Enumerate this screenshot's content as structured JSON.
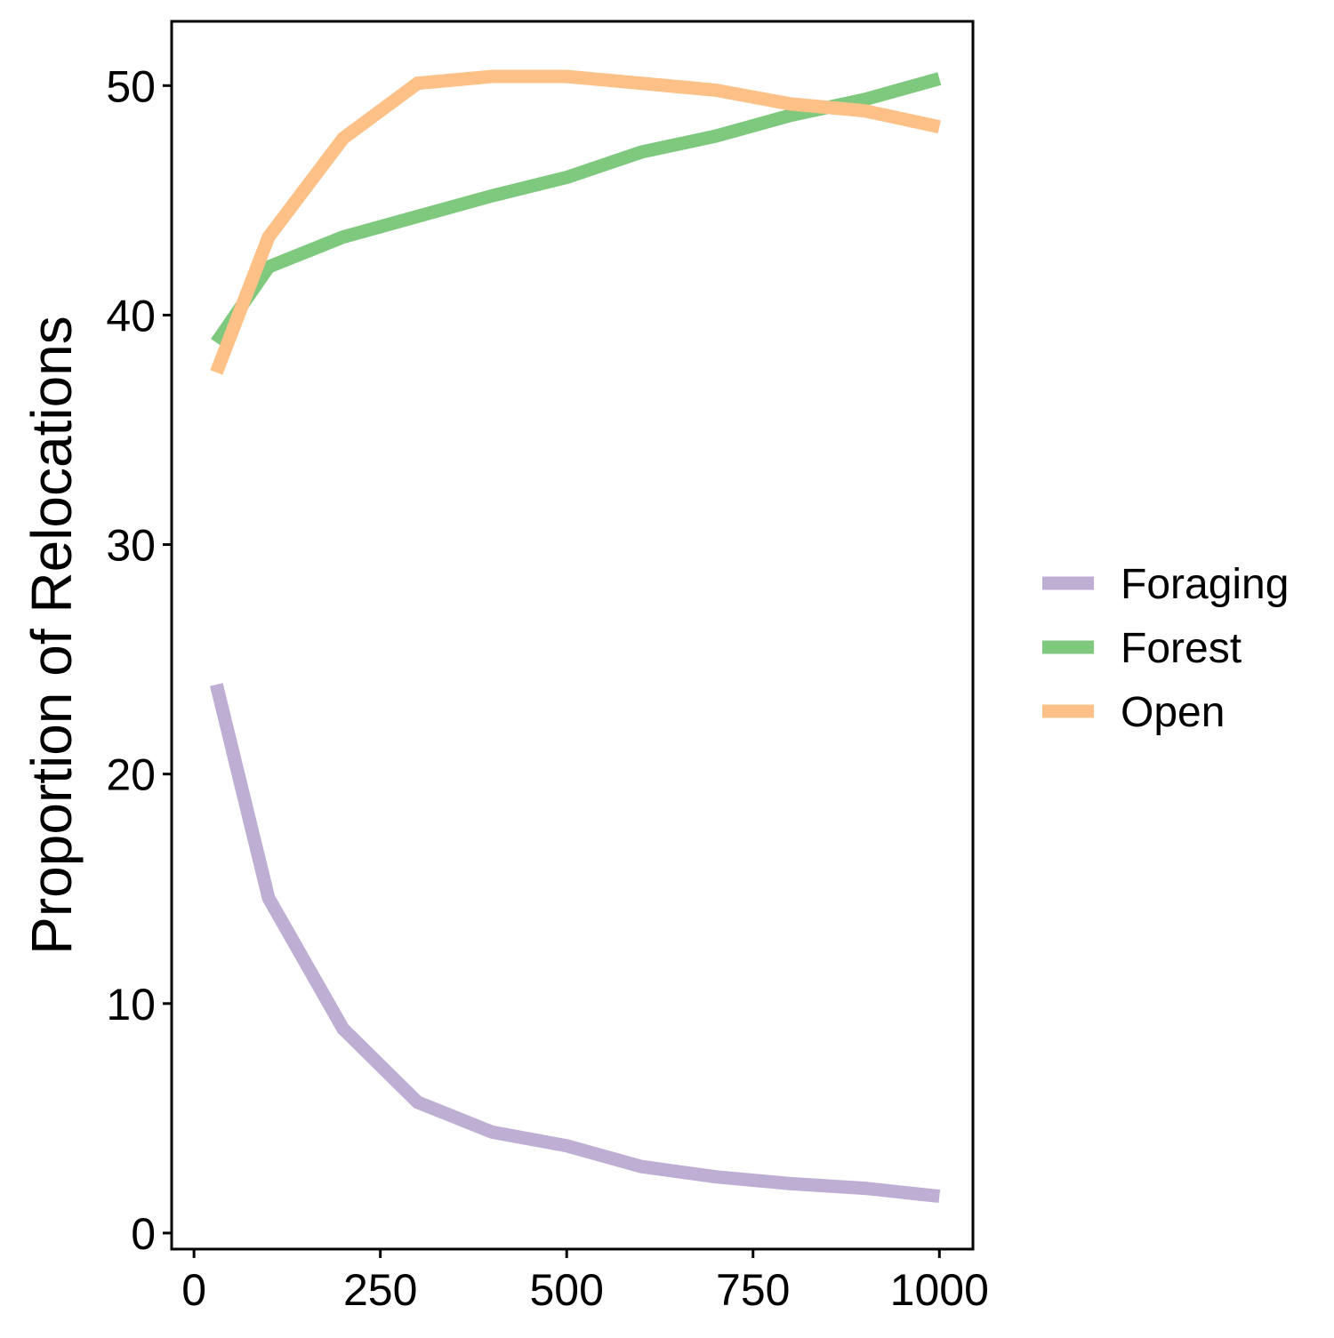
{
  "chart_data": {
    "type": "line",
    "title": "",
    "xlabel": "",
    "ylabel": "Proportion of Relocations",
    "xlim": [
      -30,
      1045
    ],
    "ylim": [
      -0.7,
      52.8
    ],
    "x_ticks": [
      0,
      250,
      500,
      750,
      1000
    ],
    "y_ticks": [
      0,
      10,
      20,
      30,
      40,
      50
    ],
    "grid": false,
    "legend_position": "right",
    "series": [
      {
        "name": "Foraging",
        "color": "#beaed4",
        "x": [
          30,
          100,
          200,
          300,
          400,
          500,
          600,
          700,
          800,
          900,
          1000
        ],
        "y": [
          23.9,
          14.6,
          8.9,
          5.7,
          4.4,
          3.8,
          2.9,
          2.45,
          2.15,
          1.95,
          1.6
        ]
      },
      {
        "name": "Forest",
        "color": "#7fc97f",
        "x": [
          30,
          100,
          200,
          300,
          400,
          500,
          600,
          700,
          800,
          900,
          1000
        ],
        "y": [
          38.8,
          42.1,
          43.4,
          44.3,
          45.2,
          46.0,
          47.1,
          47.8,
          48.7,
          49.4,
          50.3
        ]
      },
      {
        "name": "Open",
        "color": "#fdc086",
        "x": [
          30,
          100,
          200,
          300,
          400,
          500,
          600,
          700,
          800,
          900,
          1000
        ],
        "y": [
          37.5,
          43.4,
          47.7,
          50.1,
          50.4,
          50.4,
          50.1,
          49.8,
          49.2,
          48.9,
          48.2
        ]
      }
    ]
  }
}
